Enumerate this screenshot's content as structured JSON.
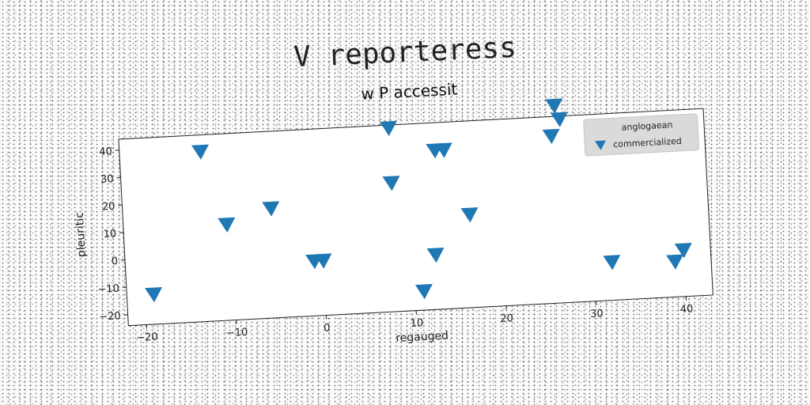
{
  "page_title": "V reporteress",
  "chart_data": {
    "type": "scatter",
    "title": "w P accessit",
    "xlabel": "regauged",
    "ylabel": "pleuritic",
    "xlim": [
      -22,
      43
    ],
    "ylim": [
      -24,
      44
    ],
    "xticks": [
      -20,
      -10,
      0,
      10,
      20,
      30,
      40
    ],
    "yticks": [
      -20,
      -10,
      0,
      10,
      20,
      30,
      40
    ],
    "grid": false,
    "legend": {
      "title": "anglogaean",
      "placement": "top-right",
      "entries": [
        "commercialized"
      ]
    },
    "marker": "triangle-down",
    "color": "#1f77b4",
    "series": [
      {
        "name": "commercialized",
        "x": [
          -19,
          -13,
          -10.5,
          -5.5,
          -1,
          0,
          8,
          8,
          11,
          12.5,
          13,
          14,
          16.5,
          26,
          26.5,
          27,
          32,
          39,
          40
        ],
        "y": [
          -13,
          38,
          11,
          16,
          -4,
          -4,
          43,
          23,
          -17,
          -4,
          34,
          34,
          10,
          37,
          48,
          43,
          -10,
          -11,
          -7
        ]
      }
    ]
  }
}
